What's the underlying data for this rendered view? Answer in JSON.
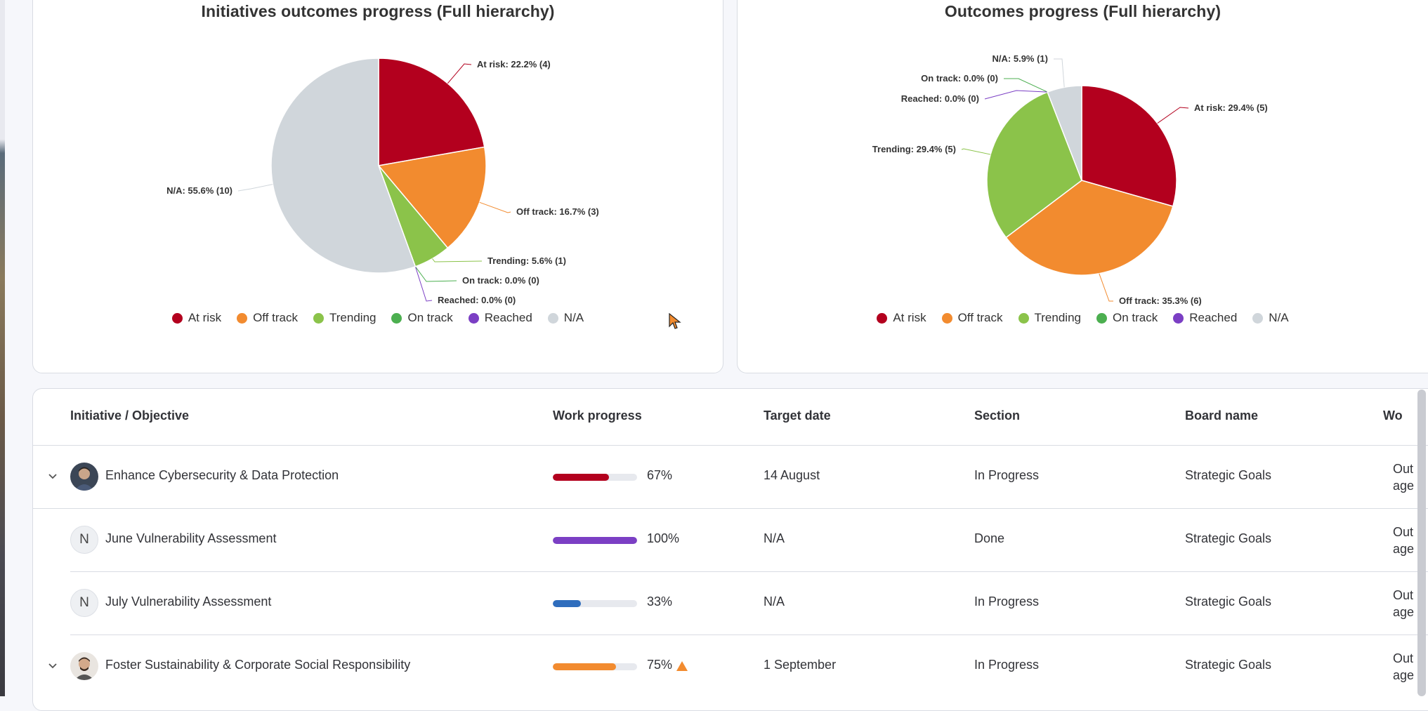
{
  "colors": {
    "at_risk": "#b3001e",
    "off_track": "#f28b2f",
    "trending": "#8bc34a",
    "on_track": "#4caf50",
    "reached": "#7b3fc4",
    "na": "#d0d6db"
  },
  "charts": {
    "left_title": "Initiatives outcomes progress (Full hierarchy)",
    "right_title": "Outcomes progress (Full hierarchy)"
  },
  "legend": [
    "At risk",
    "Off track",
    "Trending",
    "On track",
    "Reached",
    "N/A"
  ],
  "chart_data": [
    {
      "type": "pie",
      "title": "Initiatives outcomes progress (Full hierarchy)",
      "categories": [
        "At risk",
        "Off track",
        "Trending",
        "On track",
        "Reached",
        "N/A"
      ],
      "values": [
        4,
        3,
        1,
        0,
        0,
        10
      ],
      "labels": [
        "At risk: 22.2% (4)",
        "Off track: 16.7% (3)",
        "Trending: 5.6% (1)",
        "On track: 0.0% (0)",
        "Reached: 0.0% (0)",
        "N/A: 55.6% (10)"
      ],
      "legend": "bottom"
    },
    {
      "type": "pie",
      "title": "Outcomes progress (Full hierarchy)",
      "categories": [
        "At risk",
        "Off track",
        "Trending",
        "On track",
        "Reached",
        "N/A"
      ],
      "values": [
        5,
        6,
        5,
        0,
        0,
        1
      ],
      "labels": [
        "At risk: 29.4% (5)",
        "Off track: 35.3% (6)",
        "Trending: 29.4% (5)",
        "On track: 0.0% (0)",
        "Reached: 0.0% (0)",
        "N/A: 5.9% (1)"
      ],
      "legend": "bottom"
    }
  ],
  "table": {
    "headers": [
      "Initiative / Objective",
      "Work progress",
      "Target date",
      "Section",
      "Board name",
      "Wo"
    ],
    "rows": [
      {
        "name": "Enhance Cybersecurity & Data Protection",
        "progress": 0.67,
        "progress_label": "67%",
        "progress_color": "#b3001e",
        "target": "14 August",
        "section": "In Progress",
        "board": "Strategic Goals",
        "trunc1": "Out",
        "trunc2": "age"
      },
      {
        "name": "June Vulnerability Assessment",
        "avatar_letter": "N",
        "progress": 1.0,
        "progress_label": "100%",
        "progress_color": "#7b3fc4",
        "target": "N/A",
        "section": "Done",
        "board": "Strategic Goals",
        "trunc1": "Out",
        "trunc2": "age"
      },
      {
        "name": "July Vulnerability Assessment",
        "avatar_letter": "N",
        "progress": 0.33,
        "progress_label": "33%",
        "progress_color": "#2f6dbd",
        "target": "N/A",
        "section": "In Progress",
        "board": "Strategic Goals",
        "trunc1": "Out",
        "trunc2": "age"
      },
      {
        "name": "Foster Sustainability & Corporate Social Responsibility",
        "progress": 0.75,
        "progress_label": "75%",
        "progress_color": "#f28b2f",
        "target": "1 September",
        "section": "In Progress",
        "board": "Strategic Goals",
        "trunc1": "Out",
        "trunc2": "age"
      }
    ]
  }
}
